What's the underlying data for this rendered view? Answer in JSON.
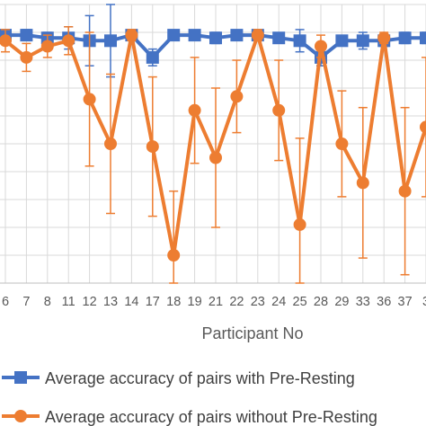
{
  "chart_data": {
    "type": "line",
    "title": "",
    "xlabel": "Participant No",
    "ylabel": "",
    "grid": true,
    "legend_position": "bottom",
    "categories": [
      "6",
      "7",
      "8",
      "11",
      "12",
      "13",
      "14",
      "17",
      "18",
      "19",
      "21",
      "22",
      "23",
      "24",
      "25",
      "28",
      "29",
      "33",
      "36",
      "37",
      "3"
    ],
    "ylim": [
      0,
      1
    ],
    "series": [
      {
        "name": "Average accuracy of pairs with Pre-Resting",
        "color": "#4472C4",
        "values": [
          0.89,
          0.89,
          0.88,
          0.88,
          0.87,
          0.87,
          0.89,
          0.81,
          0.89,
          0.89,
          0.88,
          0.89,
          0.89,
          0.88,
          0.87,
          0.81,
          0.87,
          0.87,
          0.87,
          0.88,
          0.88
        ],
        "err_plus": [
          0.01,
          0.02,
          0.02,
          0.04,
          0.09,
          0.13,
          0.01,
          0.03,
          0.01,
          0.01,
          0.02,
          0.01,
          0.01,
          0.01,
          0.04,
          0.03,
          0.01,
          0.03,
          0.02,
          0.02,
          0.02
        ],
        "err_minus": [
          0.01,
          0.02,
          0.02,
          0.04,
          0.09,
          0.13,
          0.01,
          0.03,
          0.01,
          0.01,
          0.02,
          0.01,
          0.01,
          0.01,
          0.04,
          0.03,
          0.01,
          0.03,
          0.02,
          0.02,
          0.02
        ]
      },
      {
        "name": "Average accuracy of pairs without Pre-Resting",
        "color": "#ED7D31",
        "values": [
          0.87,
          0.81,
          0.85,
          0.87,
          0.66,
          0.5,
          0.89,
          0.49,
          0.1,
          0.62,
          0.45,
          0.67,
          0.89,
          0.62,
          0.21,
          0.85,
          0.5,
          0.36,
          0.88,
          0.33,
          0.56
        ],
        "err_plus": [
          0.04,
          0.05,
          0.04,
          0.05,
          0.24,
          0.25,
          0.02,
          0.25,
          0.23,
          0.19,
          0.25,
          0.13,
          0.02,
          0.18,
          0.31,
          0.04,
          0.19,
          0.27,
          0.02,
          0.3,
          0.25
        ],
        "err_minus": [
          0.04,
          0.05,
          0.04,
          0.05,
          0.24,
          0.25,
          0.02,
          0.25,
          0.23,
          0.19,
          0.25,
          0.13,
          0.02,
          0.18,
          0.31,
          0.04,
          0.19,
          0.27,
          0.02,
          0.3,
          0.25
        ]
      }
    ]
  }
}
